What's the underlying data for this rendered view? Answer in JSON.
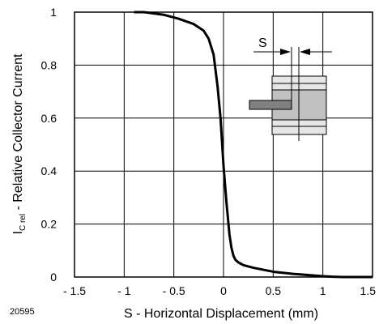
{
  "figure_id": "20595",
  "chart_data": {
    "type": "line",
    "title": "",
    "xlabel": "S - Horizontal Displacement (mm)",
    "ylabel": {
      "prefix": "I",
      "subscript": "C rel",
      "suffix": " - Relative Collector Current"
    },
    "xlim": [
      -1.5,
      1.5
    ],
    "ylim": [
      0,
      1
    ],
    "x_ticks": [
      "- 1.5",
      "- 1",
      "- 0.5",
      "0",
      "0.5",
      "1",
      "1.5"
    ],
    "x_tick_values": [
      -1.5,
      -1,
      -0.5,
      0,
      0.5,
      1,
      1.5
    ],
    "y_ticks": [
      "0",
      "0.2",
      "0.4",
      "0.6",
      "0.8",
      "1"
    ],
    "y_tick_values": [
      0,
      0.2,
      0.4,
      0.6,
      0.8,
      1
    ],
    "grid": true,
    "series": [
      {
        "color": "#000000",
        "x": [
          -0.9,
          -0.8,
          -0.6,
          -0.45,
          -0.3,
          -0.2,
          -0.15,
          -0.1,
          -0.06,
          -0.03,
          0,
          0.03,
          0.06,
          0.08,
          0.1,
          0.12,
          0.15,
          0.2,
          0.3,
          0.5,
          0.7,
          0.9,
          1.0,
          1.1,
          1.2,
          1.5
        ],
        "y": [
          1.0,
          1.0,
          0.99,
          0.975,
          0.955,
          0.93,
          0.9,
          0.84,
          0.72,
          0.6,
          0.42,
          0.28,
          0.16,
          0.11,
          0.08,
          0.065,
          0.055,
          0.045,
          0.035,
          0.02,
          0.012,
          0.006,
          0.003,
          0.001,
          0.0,
          0.0
        ]
      }
    ],
    "inset": {
      "label": "S",
      "body_color": "#c0c0c0",
      "emitter_color": "#808080",
      "light_band_color": "#e6e6e6"
    }
  }
}
